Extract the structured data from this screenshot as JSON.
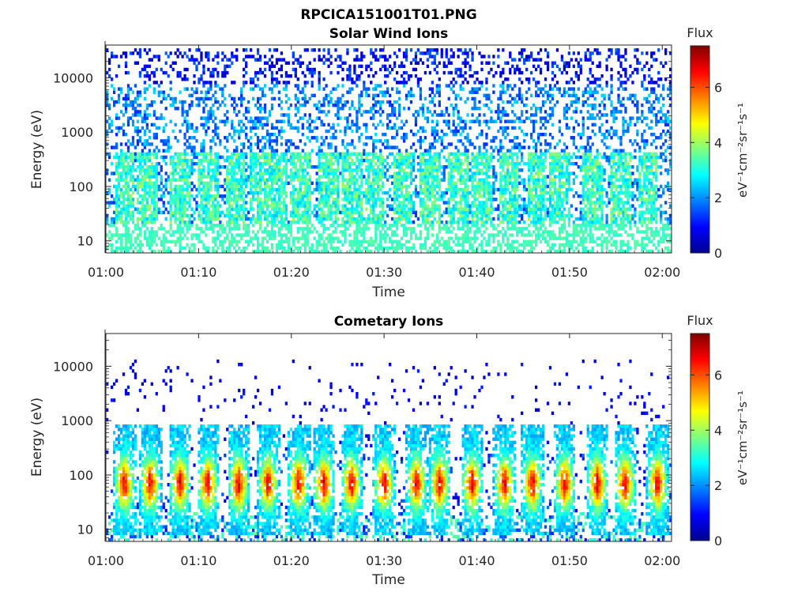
{
  "figure_title": "RPCICA151001T01.PNG",
  "chart_data": [
    {
      "type": "heatmap",
      "title": "Solar Wind Ions",
      "xlabel": "Time",
      "ylabel": "Energy (eV)",
      "x_ticks": [
        "01:00",
        "01:10",
        "01:20",
        "01:30",
        "01:40",
        "01:50",
        "02:00"
      ],
      "xlim": [
        "01:00",
        "02:01"
      ],
      "y_scale": "log",
      "y_ticks": [
        "10",
        "100",
        "1000",
        "10000"
      ],
      "ylim": [
        6,
        40000
      ],
      "colorbar": {
        "label": "Flux",
        "units": "eV⁻¹cm⁻²sr⁻¹s⁻¹",
        "range": [
          0,
          7.5
        ],
        "ticks": [
          "0",
          "2",
          "4",
          "6"
        ],
        "colormap": "jet"
      },
      "description_of_data": "Sparse blue scatter (flux 0.5-3) spanning 100-30000 eV across the whole hour; recurring light-blue/green bursts (flux 2.5-4) at 20-400 eV roughly every 3-4 minutes; steady green band (flux ~3.2) below 20 eV.",
      "burst_times_min": [
        2,
        4.5,
        8,
        11,
        14,
        16.5,
        18.5,
        21,
        24,
        26.5,
        29,
        32,
        35,
        38,
        40.5,
        43.5,
        46.5,
        49,
        52.5,
        55.5,
        58.5
      ]
    },
    {
      "type": "heatmap",
      "title": "Cometary Ions",
      "xlabel": "Time",
      "ylabel": "Energy (eV)",
      "x_ticks": [
        "01:00",
        "01:10",
        "01:20",
        "01:30",
        "01:40",
        "01:50",
        "02:00"
      ],
      "xlim": [
        "01:00",
        "02:01"
      ],
      "y_scale": "log",
      "y_ticks": [
        "10",
        "100",
        "1000",
        "10000"
      ],
      "ylim": [
        6,
        40000
      ],
      "colorbar": {
        "label": "Flux",
        "units": "eV⁻¹cm⁻²sr⁻¹s⁻¹",
        "range": [
          0,
          7.5
        ],
        "ticks": [
          "0",
          "2",
          "4",
          "6"
        ],
        "colormap": "jet"
      },
      "description_of_data": "Periodic cometary ion bursts centred near 60-80 eV reaching flux 5.5-6.5 (orange/red), extending from ~10 eV to ~800 eV, repeating about every 3-4 minutes; sparse dark-blue points (flux ~0.5) from 1000-10000 eV.",
      "burst_times_min": [
        2,
        4.8,
        8,
        11,
        14.3,
        17.5,
        20.8,
        23.5,
        26.5,
        30,
        33.5,
        36,
        39.5,
        43,
        46,
        49.5,
        53,
        56,
        59.5
      ],
      "peak_flux": 6.5,
      "peak_energy_eV": 70
    }
  ]
}
